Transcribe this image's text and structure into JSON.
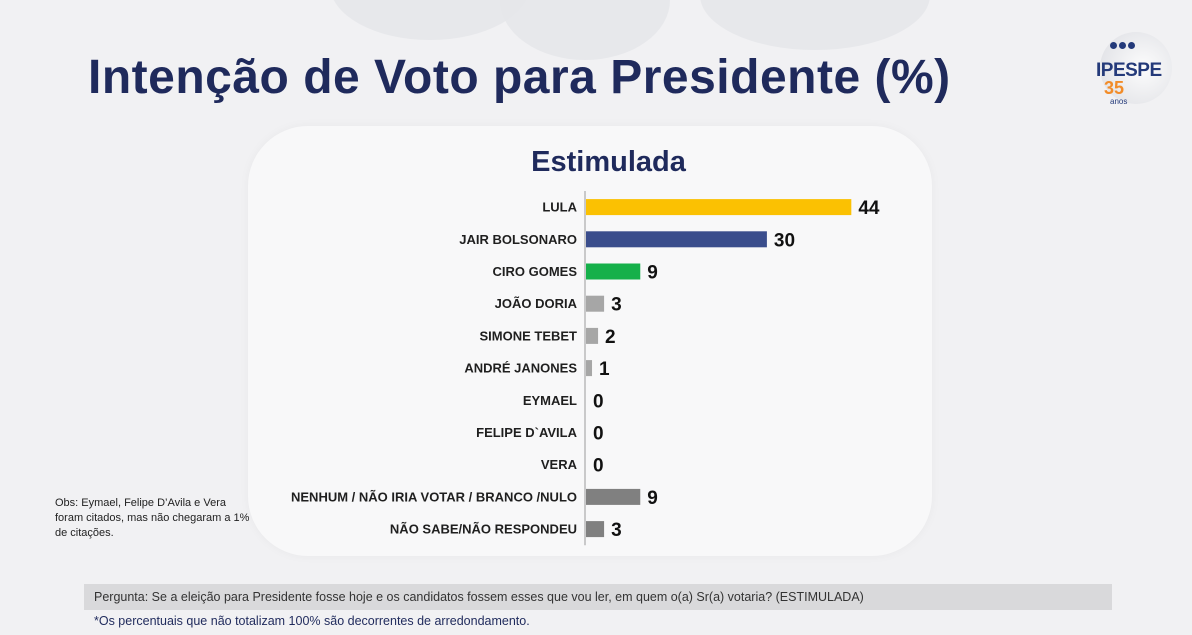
{
  "header": {
    "title": "Intenção de Voto para Presidente (%)"
  },
  "logo": {
    "brand": "IPESPE",
    "years": "35",
    "anos": "anos"
  },
  "chart_data": {
    "type": "bar",
    "orientation": "horizontal",
    "title": "Estimulada",
    "categories": [
      "LULA",
      "JAIR BOLSONARO",
      "CIRO GOMES",
      "JOÃO DORIA",
      "SIMONE TEBET",
      "ANDRÉ JANONES",
      "EYMAEL",
      "FELIPE D`AVILA",
      "VERA",
      "NENHUM / NÃO IRIA VOTAR / BRANCO /NULO",
      "NÃO SABE/NÃO RESPONDEU"
    ],
    "values": [
      44,
      30,
      9,
      3,
      2,
      1,
      0,
      0,
      0,
      9,
      3
    ],
    "colors": [
      "#fbc102",
      "#3a4d8c",
      "#15b04a",
      "#a6a6a6",
      "#a6a6a6",
      "#a6a6a6",
      "#a6a6a6",
      "#a6a6a6",
      "#a6a6a6",
      "#808080",
      "#808080"
    ],
    "xlim": [
      0,
      50
    ],
    "grid": false
  },
  "notes": {
    "obs": "Obs: Eymael, Felipe D’Avila e Vera foram citados, mas não chegaram a 1% de citações.",
    "question": "Pergunta:  Se a eleição para Presidente fosse hoje e os candidatos fossem esses que vou ler, em quem o(a) Sr(a) votaria? (ESTIMULADA)",
    "footnote": "*Os percentuais que não totalizam 100% são decorrentes de arredondamento."
  }
}
